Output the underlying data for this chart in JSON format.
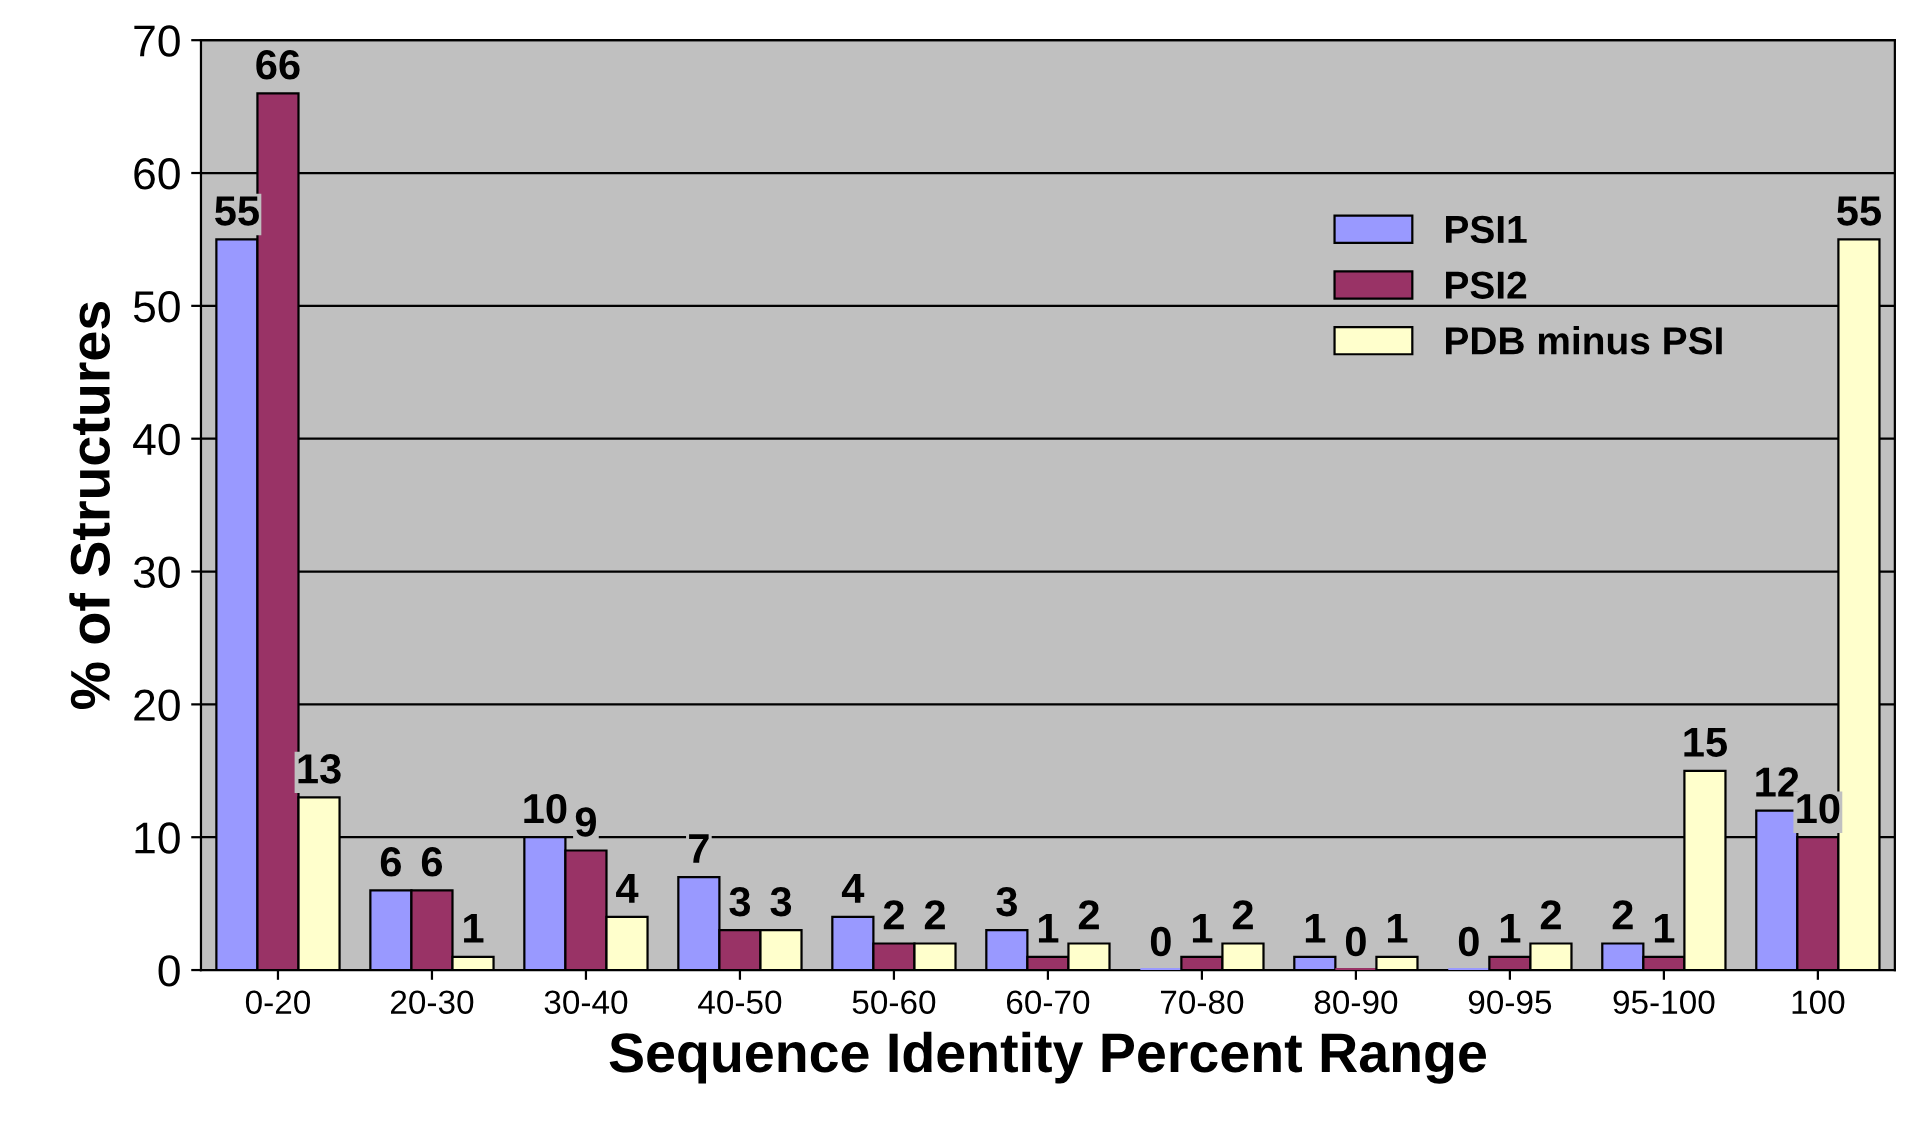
{
  "chart_data": {
    "type": "bar",
    "xlabel": "Sequence Identity Percent Range",
    "ylabel": "% of Structures",
    "categories": [
      "0-20",
      "20-30",
      "30-40",
      "40-50",
      "50-60",
      "60-70",
      "70-80",
      "80-90",
      "90-95",
      "95-100",
      "100"
    ],
    "series": [
      {
        "name": "PSI1",
        "color": "#9999ff",
        "values": [
          55,
          6,
          10,
          7,
          4,
          3,
          0,
          1,
          0,
          2,
          12
        ]
      },
      {
        "name": "PSI2",
        "color": "#993366",
        "values": [
          66,
          6,
          9,
          3,
          2,
          1,
          1,
          0,
          1,
          1,
          10
        ]
      },
      {
        "name": "PDB minus PSI",
        "color": "#ffffcc",
        "values": [
          13,
          1,
          4,
          3,
          2,
          2,
          2,
          1,
          2,
          15,
          55
        ]
      }
    ],
    "ylim": [
      0,
      70
    ],
    "yticks": [
      0,
      10,
      20,
      30,
      40,
      50,
      60,
      70
    ],
    "grid": "y",
    "legend": "top right",
    "data_labels": true
  }
}
